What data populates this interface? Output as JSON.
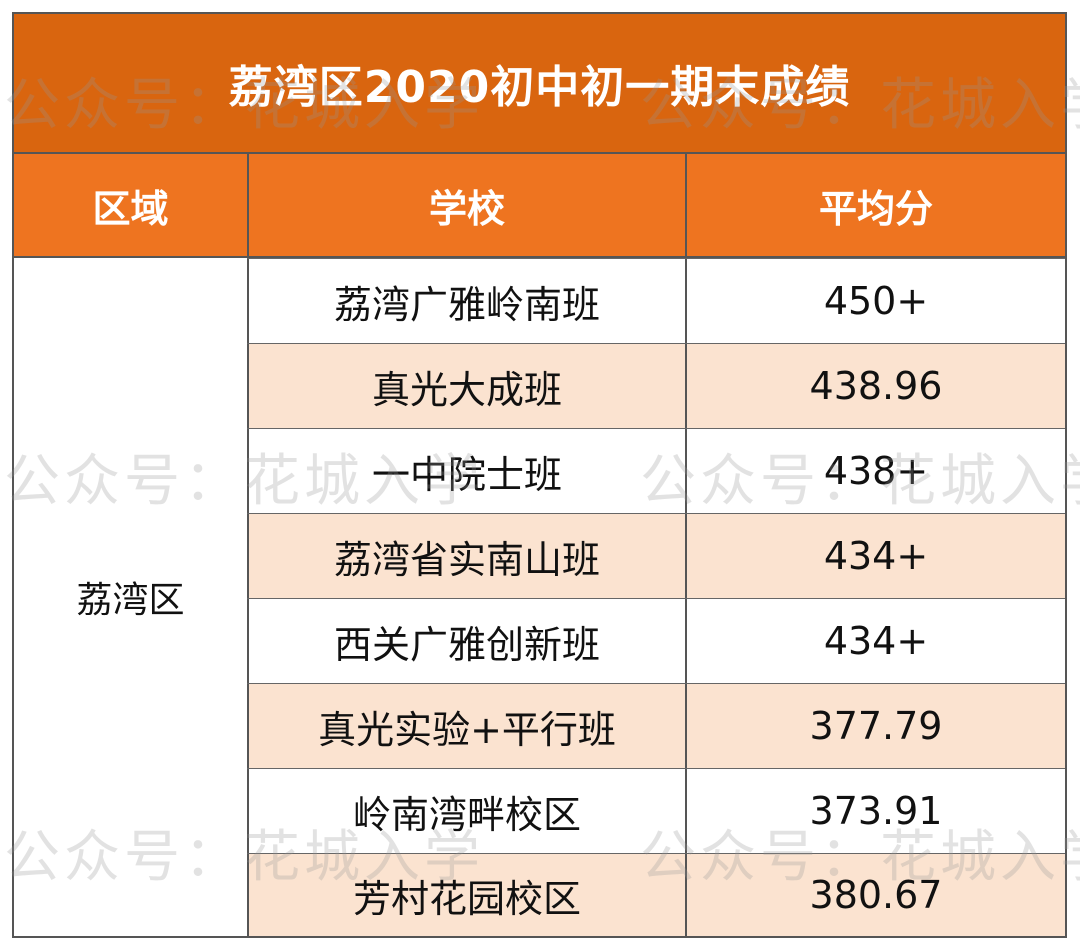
{
  "title": "荔湾区2020初中初一期末成绩",
  "headers": {
    "region": "区域",
    "school": "学校",
    "score": "平均分"
  },
  "region_name": "荔湾区",
  "rows": [
    {
      "school": "荔湾广雅岭南班",
      "score": "450+"
    },
    {
      "school": "真光大成班",
      "score": "438.96"
    },
    {
      "school": "一中院士班",
      "score": "438+"
    },
    {
      "school": "荔湾省实南山班",
      "score": "434+"
    },
    {
      "school": "西关广雅创新班",
      "score": "434+"
    },
    {
      "school": "真光实验+平行班",
      "score": "377.79"
    },
    {
      "school": "岭南湾畔校区",
      "score": "373.91"
    },
    {
      "school": "芳村花园校区",
      "score": "380.67"
    }
  ],
  "watermark": "公众号：花城入学",
  "colors": {
    "title_bg": "#d9650f",
    "header_bg": "#ee7420",
    "stripe": "#fbe3d0"
  }
}
